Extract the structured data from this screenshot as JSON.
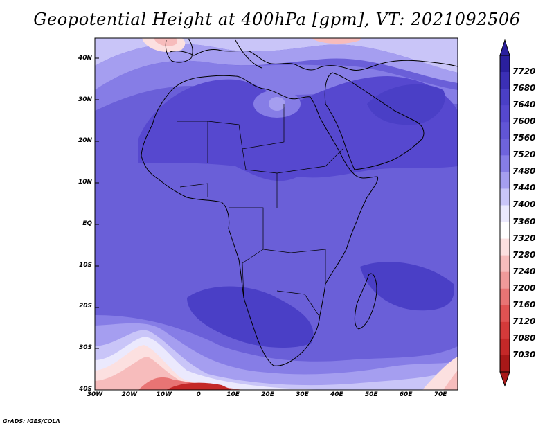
{
  "title": "Geopotential Height at 400hPa [gpm], VT: 2021092506",
  "credit": "GrADS: IGES/COLA",
  "map": {
    "lat_labels": [
      "40N",
      "30N",
      "20N",
      "10N",
      "EQ",
      "10S",
      "20S",
      "30S",
      "40S"
    ],
    "lat_values": [
      40,
      30,
      20,
      10,
      0,
      -10,
      -20,
      -30,
      -40
    ],
    "lon_labels": [
      "30W",
      "20W",
      "10W",
      "0",
      "10E",
      "20E",
      "30E",
      "40E",
      "50E",
      "60E",
      "70E"
    ],
    "lon_values": [
      -30,
      -20,
      -10,
      0,
      10,
      20,
      30,
      40,
      50,
      60,
      70
    ],
    "lon_range": [
      -30,
      75
    ],
    "lat_range": [
      -40,
      45
    ]
  },
  "colorbar": {
    "levels": [
      "7720",
      "7680",
      "7640",
      "7600",
      "7560",
      "7520",
      "7480",
      "7440",
      "7400",
      "7360",
      "7320",
      "7280",
      "7240",
      "7200",
      "7160",
      "7120",
      "7080",
      "7030"
    ],
    "colors": [
      "#2a1f9e",
      "#3b2fb5",
      "#4a3fc6",
      "#5648cf",
      "#6155d6",
      "#6e63dc",
      "#867de6",
      "#a59ef0",
      "#c9c5f8",
      "#ebe9fd",
      "#ffffff",
      "#fce0e0",
      "#f7bcbc",
      "#f09a9a",
      "#e87474",
      "#e05252",
      "#d43a3a",
      "#c42828",
      "#a81818"
    ]
  }
}
